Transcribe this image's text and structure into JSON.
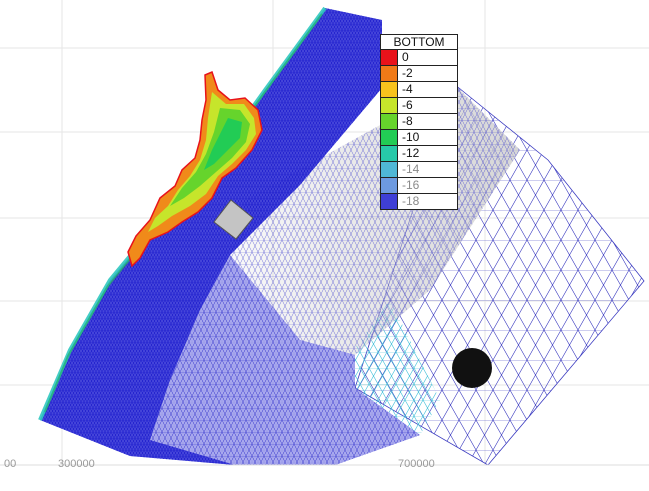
{
  "legend": {
    "title": "BOTTOM",
    "entries": [
      {
        "label": "0",
        "color": "#e8121a"
      },
      {
        "label": "-2",
        "color": "#f07a17"
      },
      {
        "label": "-4",
        "color": "#f7c21d"
      },
      {
        "label": "-6",
        "color": "#c6e52b"
      },
      {
        "label": "-8",
        "color": "#66d42c"
      },
      {
        "label": "-10",
        "color": "#22cc55"
      },
      {
        "label": "-12",
        "color": "#27c9a9"
      },
      {
        "label": "-14",
        "color": "#4fb7d6"
      },
      {
        "label": "-16",
        "color": "#6d9ae0"
      },
      {
        "label": "-18",
        "color": "#3f3fd6"
      }
    ]
  },
  "x_axis": {
    "labels": [
      "00",
      "300000",
      "",
      "700000"
    ]
  },
  "features": {
    "mesh_color": "#1e1ec8",
    "land_patch_color": "#c0c0c0",
    "black_dot_color": "#111111"
  }
}
